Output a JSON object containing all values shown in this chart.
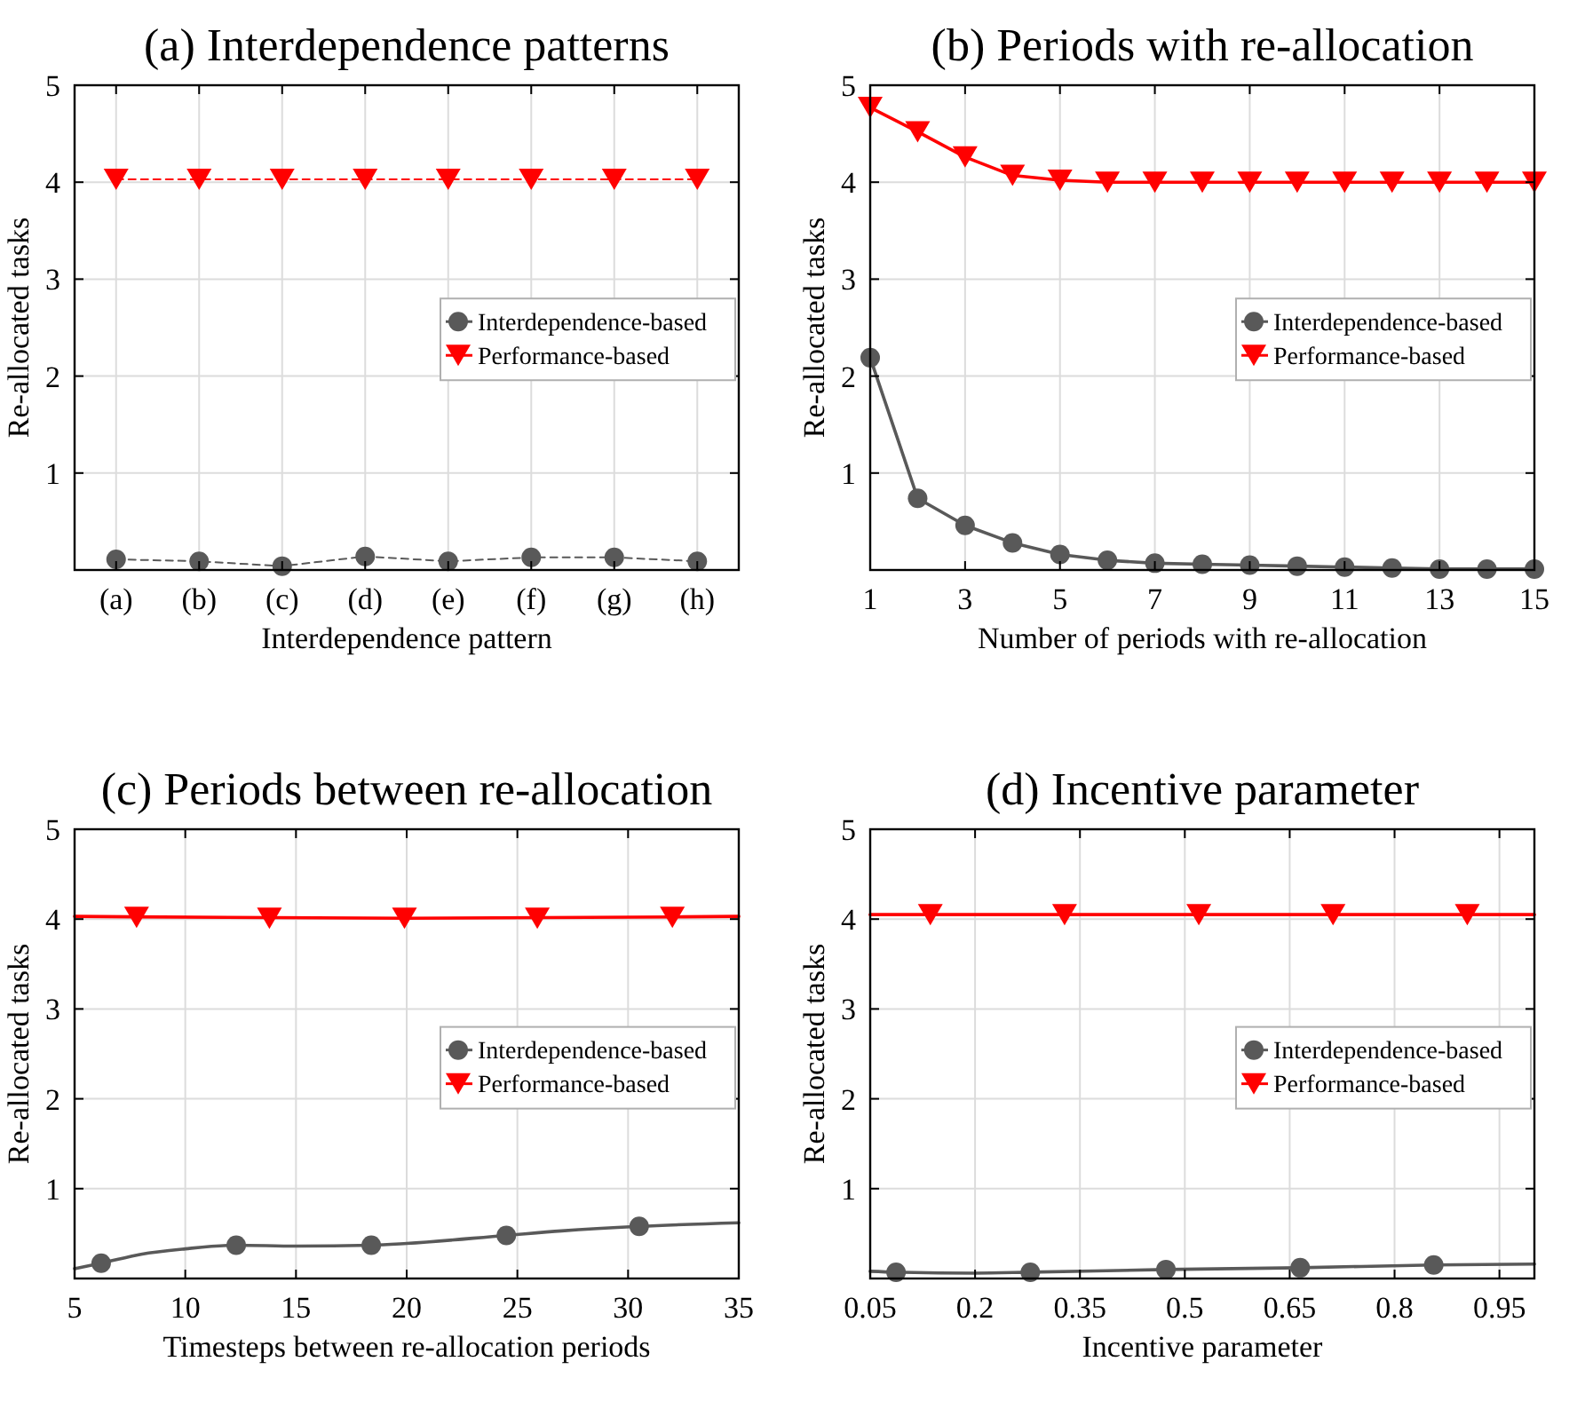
{
  "chart_data": [
    {
      "type": "line",
      "title": "(a) Interdependence patterns",
      "xlabel": "Interdependence pattern",
      "ylabel": "Re-allocated tasks",
      "categories": [
        "(a)",
        "(b)",
        "(c)",
        "(d)",
        "(e)",
        "(f)",
        "(g)",
        "(h)"
      ],
      "ylim": [
        0,
        5
      ],
      "yticks": [
        1,
        2,
        3,
        4,
        5
      ],
      "grid": true,
      "legend": "right",
      "line_style": "dashed",
      "series": [
        {
          "name": "Interdependence-based",
          "color": "#595959",
          "marker": "circle",
          "values": [
            0.11,
            0.09,
            0.04,
            0.14,
            0.09,
            0.13,
            0.13,
            0.09
          ]
        },
        {
          "name": "Performance-based",
          "color": "#ff0000",
          "marker": "triangle",
          "values": [
            4.03,
            4.03,
            4.03,
            4.03,
            4.03,
            4.03,
            4.03,
            4.03
          ]
        }
      ]
    },
    {
      "type": "line",
      "title": "(b) Periods with re-allocation",
      "xlabel": "Number of periods with re-allocation",
      "ylabel": "Re-allocated tasks",
      "x": [
        1,
        2,
        3,
        4,
        5,
        6,
        7,
        8,
        9,
        10,
        11,
        12,
        13,
        14,
        15
      ],
      "xlim": [
        1,
        15
      ],
      "xticks": [
        1,
        3,
        5,
        7,
        9,
        11,
        13,
        15
      ],
      "ylim": [
        0,
        5
      ],
      "yticks": [
        1,
        2,
        3,
        4,
        5
      ],
      "grid": true,
      "legend": "right",
      "line_style": "solid",
      "series": [
        {
          "name": "Interdependence-based",
          "color": "#595959",
          "marker": "circle",
          "values": [
            2.19,
            0.74,
            0.46,
            0.28,
            0.16,
            0.1,
            0.07,
            0.06,
            0.05,
            0.04,
            0.03,
            0.02,
            0.01,
            0.01,
            0.01
          ]
        },
        {
          "name": "Performance-based",
          "color": "#ff0000",
          "marker": "triangle",
          "values": [
            4.77,
            4.52,
            4.26,
            4.07,
            4.02,
            4.0,
            4.0,
            4.0,
            4.0,
            4.0,
            4.0,
            4.0,
            4.0,
            4.0,
            4.0
          ]
        }
      ]
    },
    {
      "type": "line",
      "title": "(c) Periods between re-allocation",
      "xlabel": "Timesteps between re-allocation periods",
      "ylabel": "Re-allocated tasks",
      "xlim": [
        5,
        35
      ],
      "xticks": [
        5,
        10,
        15,
        20,
        25,
        30,
        35
      ],
      "ylim": [
        0,
        5
      ],
      "yticks": [
        1,
        2,
        3,
        4,
        5
      ],
      "grid": true,
      "legend": "right",
      "line_style": "solid",
      "series": [
        {
          "color": "#595959",
          "marker": "none",
          "x": [
            5,
            6.2,
            8,
            10,
            12.3,
            15,
            18.4,
            20,
            24.5,
            27,
            30.5,
            35
          ],
          "values": [
            0.11,
            0.17,
            0.27,
            0.33,
            0.37,
            0.36,
            0.37,
            0.39,
            0.48,
            0.53,
            0.58,
            0.62
          ]
        },
        {
          "color": "#ff0000",
          "marker": "none",
          "x": [
            5,
            20,
            35
          ],
          "values": [
            4.03,
            4.01,
            4.03
          ]
        },
        {
          "type": "scatter",
          "name": "Interdependence-based",
          "color": "#595959",
          "marker": "circle",
          "x": [
            6.2,
            12.3,
            18.4,
            24.5,
            30.5
          ],
          "values": [
            0.17,
            0.37,
            0.37,
            0.48,
            0.58
          ]
        },
        {
          "type": "scatter",
          "name": "Performance-based",
          "color": "#ff0000",
          "marker": "triangle",
          "x": [
            7.8,
            13.8,
            19.9,
            25.9,
            32
          ],
          "values": [
            4.02,
            4.01,
            4.01,
            4.01,
            4.02
          ]
        }
      ]
    },
    {
      "type": "line",
      "title": "(d) Incentive parameter",
      "xlabel": "Incentive parameter",
      "ylabel": "Re-allocated tasks",
      "xlim": [
        0.05,
        1.0
      ],
      "xticks": [
        0.05,
        0.2,
        0.35,
        0.5,
        0.65,
        0.8,
        0.95
      ],
      "ylim": [
        0,
        5
      ],
      "yticks": [
        1,
        2,
        3,
        4,
        5
      ],
      "grid": true,
      "legend": "right",
      "line_style": "solid",
      "series": [
        {
          "color": "#595959",
          "marker": "none",
          "x": [
            0.05,
            0.087,
            0.2,
            0.279,
            0.473,
            0.665,
            0.856,
            1.0
          ],
          "values": [
            0.08,
            0.07,
            0.06,
            0.07,
            0.1,
            0.12,
            0.15,
            0.16
          ]
        },
        {
          "color": "#ff0000",
          "marker": "none",
          "x": [
            0.05,
            1.0
          ],
          "values": [
            4.05,
            4.05
          ]
        },
        {
          "type": "scatter",
          "name": "Interdependence-based",
          "color": "#595959",
          "marker": "circle",
          "x": [
            0.087,
            0.279,
            0.473,
            0.665,
            0.856
          ],
          "values": [
            0.07,
            0.07,
            0.1,
            0.12,
            0.15
          ]
        },
        {
          "type": "scatter",
          "name": "Performance-based",
          "color": "#ff0000",
          "marker": "triangle",
          "x": [
            0.136,
            0.328,
            0.52,
            0.712,
            0.904
          ],
          "values": [
            4.05,
            4.05,
            4.05,
            4.05,
            4.05
          ]
        }
      ]
    }
  ]
}
